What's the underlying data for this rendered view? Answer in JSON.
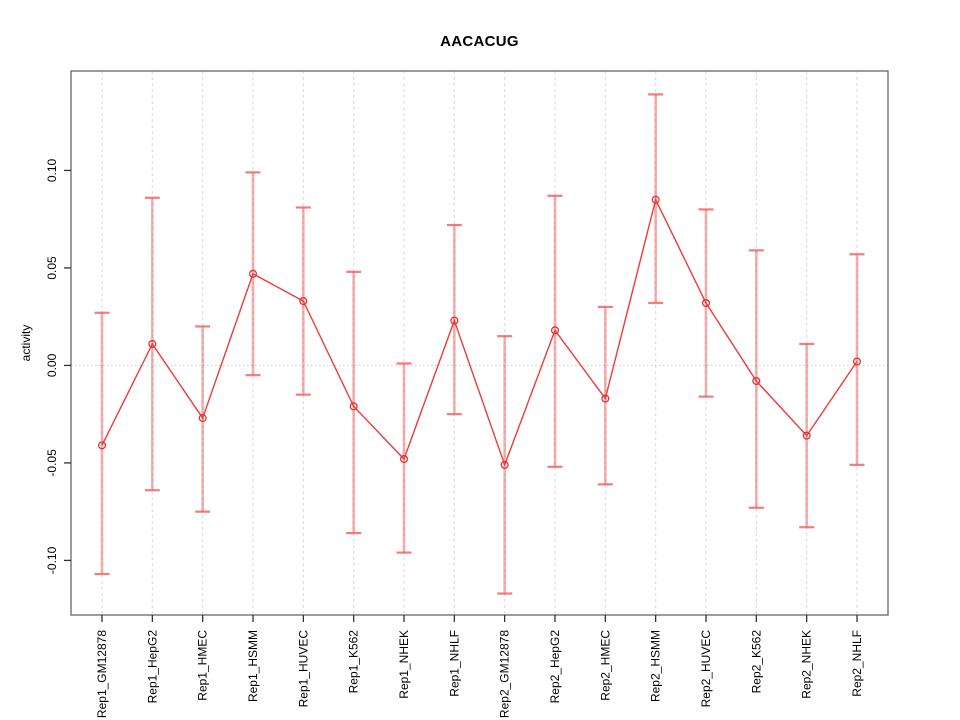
{
  "figure": {
    "background": "#ffffff"
  },
  "chart_data": {
    "type": "line",
    "title": "AACACUG",
    "xlabel": "",
    "ylabel": "activity",
    "ylim": [
      -0.128,
      0.151
    ],
    "x_tick_rotation": 90,
    "legend": "none",
    "grid": {
      "vertical_gridlines": "light-gray dashed at every category",
      "zero_line": "light-gray dotted horizontal at y=0"
    },
    "yticks": [
      {
        "value": -0.1,
        "label": "-0.10"
      },
      {
        "value": -0.05,
        "label": "-0.05"
      },
      {
        "value": 0.0,
        "label": "0.00"
      },
      {
        "value": 0.05,
        "label": "0.05"
      },
      {
        "value": 0.1,
        "label": "0.10"
      }
    ],
    "categories": [
      "Rep1_GM12878",
      "Rep1_HepG2",
      "Rep1_HMEC",
      "Rep1_HSMM",
      "Rep1_HUVEC",
      "Rep1_K562",
      "Rep1_NHEK",
      "Rep1_NHLF",
      "Rep2_GM12878",
      "Rep2_HepG2",
      "Rep2_HMEC",
      "Rep2_HSMM",
      "Rep2_HUVEC",
      "Rep2_K562",
      "Rep2_NHEK",
      "Rep2_NHLF"
    ],
    "series": [
      {
        "name": "activity",
        "marker": "open-circle",
        "values": [
          -0.041,
          0.011,
          -0.027,
          0.047,
          0.033,
          -0.021,
          -0.048,
          0.023,
          -0.051,
          0.018,
          -0.017,
          0.085,
          0.032,
          -0.008,
          -0.036,
          0.002
        ],
        "err_high": [
          0.027,
          0.086,
          0.02,
          0.099,
          0.081,
          0.048,
          0.001,
          0.072,
          0.015,
          0.087,
          0.03,
          0.139,
          0.08,
          0.059,
          0.011,
          0.057
        ],
        "err_low": [
          -0.107,
          -0.064,
          -0.075,
          -0.005,
          -0.015,
          -0.086,
          -0.096,
          -0.025,
          -0.117,
          -0.052,
          -0.061,
          0.032,
          -0.016,
          -0.073,
          -0.083,
          -0.051
        ]
      }
    ],
    "colors": {
      "line": "#ee3b3b",
      "point_stroke": "#e23333",
      "error_bar": "rgba(244,106,106,0.55)",
      "error_cap": "rgba(242,90,90,0.8)",
      "grid": "#d9d9d9",
      "zero_line": "#cccccc",
      "box": "#666666",
      "tick": "#333333",
      "text": "#000000"
    }
  }
}
